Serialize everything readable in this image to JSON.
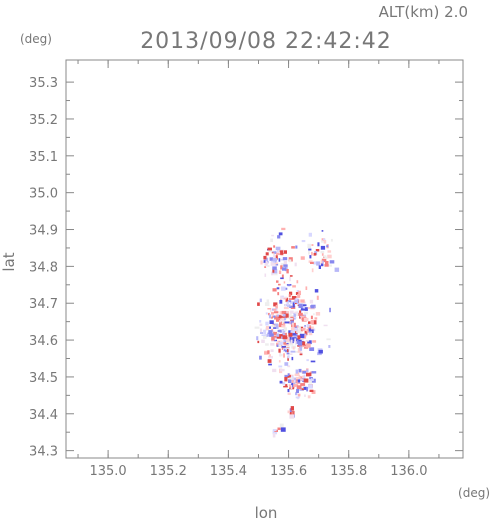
{
  "chart_data": {
    "type": "scatter",
    "title": "2013/09/08 22:42:42",
    "altitude_label": "ALT(km) 2.0",
    "xlabel": "lon",
    "ylabel": "lat",
    "x_unit": "(deg)",
    "y_unit": "(deg)",
    "xlim": [
      134.86,
      136.18
    ],
    "ylim": [
      34.28,
      35.36
    ],
    "x_ticks": [
      "135.0",
      "135.2",
      "135.4",
      "135.6",
      "135.8",
      "136.0"
    ],
    "x_tick_values": [
      135.0,
      135.2,
      135.4,
      135.6,
      135.8,
      136.0
    ],
    "y_ticks": [
      "34.3",
      "34.4",
      "34.5",
      "34.6",
      "34.7",
      "34.8",
      "34.9",
      "35.0",
      "35.1",
      "35.2",
      "35.3"
    ],
    "y_tick_values": [
      34.3,
      34.4,
      34.5,
      34.6,
      34.7,
      34.8,
      34.9,
      35.0,
      35.1,
      35.2,
      35.3
    ],
    "grid": false,
    "colors": {
      "positive": "#e04040",
      "negative": "#4040e0",
      "axis": "#888888"
    },
    "clusters": [
      {
        "lon": 135.6,
        "lat": 34.64,
        "slon": 0.045,
        "slat": 0.055,
        "n": 360
      },
      {
        "lon": 135.63,
        "lat": 34.49,
        "slon": 0.03,
        "slat": 0.02,
        "n": 90
      },
      {
        "lon": 135.56,
        "lat": 34.82,
        "slon": 0.03,
        "slat": 0.03,
        "n": 70
      },
      {
        "lon": 135.7,
        "lat": 34.84,
        "slon": 0.025,
        "slat": 0.03,
        "n": 45
      },
      {
        "lon": 135.61,
        "lat": 34.41,
        "slon": 0.01,
        "slat": 0.008,
        "n": 10
      },
      {
        "lon": 135.56,
        "lat": 34.36,
        "slon": 0.015,
        "slat": 0.006,
        "n": 8
      }
    ]
  }
}
